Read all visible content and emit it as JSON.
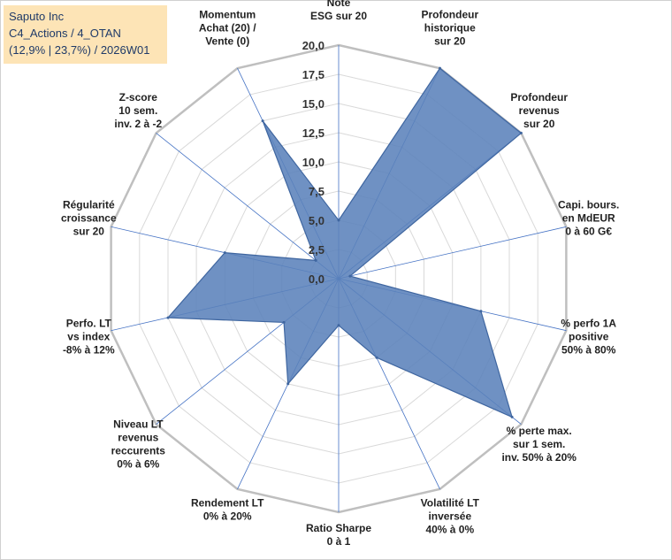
{
  "header": {
    "line1": "Saputo Inc",
    "line2": "C4_Actions / 4_OTAN",
    "line3": "(12,9% | 23,7%) / 2026W01"
  },
  "chart_data": {
    "type": "radar",
    "title": "Saputo Inc",
    "rmin": 0,
    "rmax": 20,
    "tick_step": 2.5,
    "tick_labels": [
      "0,0",
      "2,5",
      "5,0",
      "7,5",
      "10,0",
      "12,5",
      "15,0",
      "17,5",
      "20,0"
    ],
    "axes": [
      {
        "label": [
          "Note",
          "ESG sur 20"
        ],
        "value": 5
      },
      {
        "label": [
          "Profondeur",
          "historique",
          "sur 20"
        ],
        "value": 20
      },
      {
        "label": [
          "Profondeur",
          "revenus",
          "sur 20"
        ],
        "value": 20
      },
      {
        "label": [
          "Capi. bours.",
          "en MdEUR",
          "0 à 60 G€"
        ],
        "value": 1
      },
      {
        "label": [
          "% perfo 1A",
          "positive",
          "50% à 80%"
        ],
        "value": 12.5
      },
      {
        "label": [
          "% perte max.",
          "sur 1 sem.",
          "inv. 50% à 20%"
        ],
        "value": 19
      },
      {
        "label": [
          "Volatilité LT",
          "inversée",
          "40% à 0%"
        ],
        "value": 7.5
      },
      {
        "label": [
          "Ratio Sharpe",
          "0 à 1"
        ],
        "value": 4
      },
      {
        "label": [
          "Rendement LT",
          "0% à 20%"
        ],
        "value": 10
      },
      {
        "label": [
          "Niveau LT",
          "revenus",
          "reccurents",
          "0% à 6%"
        ],
        "value": 6
      },
      {
        "label": [
          "Perfo. LT",
          "vs index",
          "-8% à 12%"
        ],
        "value": 15
      },
      {
        "label": [
          "Régularité",
          "croissance",
          "sur 20"
        ],
        "value": 10
      },
      {
        "label": [
          "Z-score",
          "10 sem.",
          "inv. 2 à -2"
        ],
        "value": 2.5
      },
      {
        "label": [
          "Momentum",
          "Achat (20) /",
          "Vente (0)"
        ],
        "value": 15
      }
    ],
    "colors": {
      "fill": "#5b82bb",
      "stroke": "#3f66a0",
      "grid": "#d9d9d9",
      "outer_ring": "#bfbfbf",
      "spokes": "#4472c4",
      "text": "#222222"
    }
  }
}
